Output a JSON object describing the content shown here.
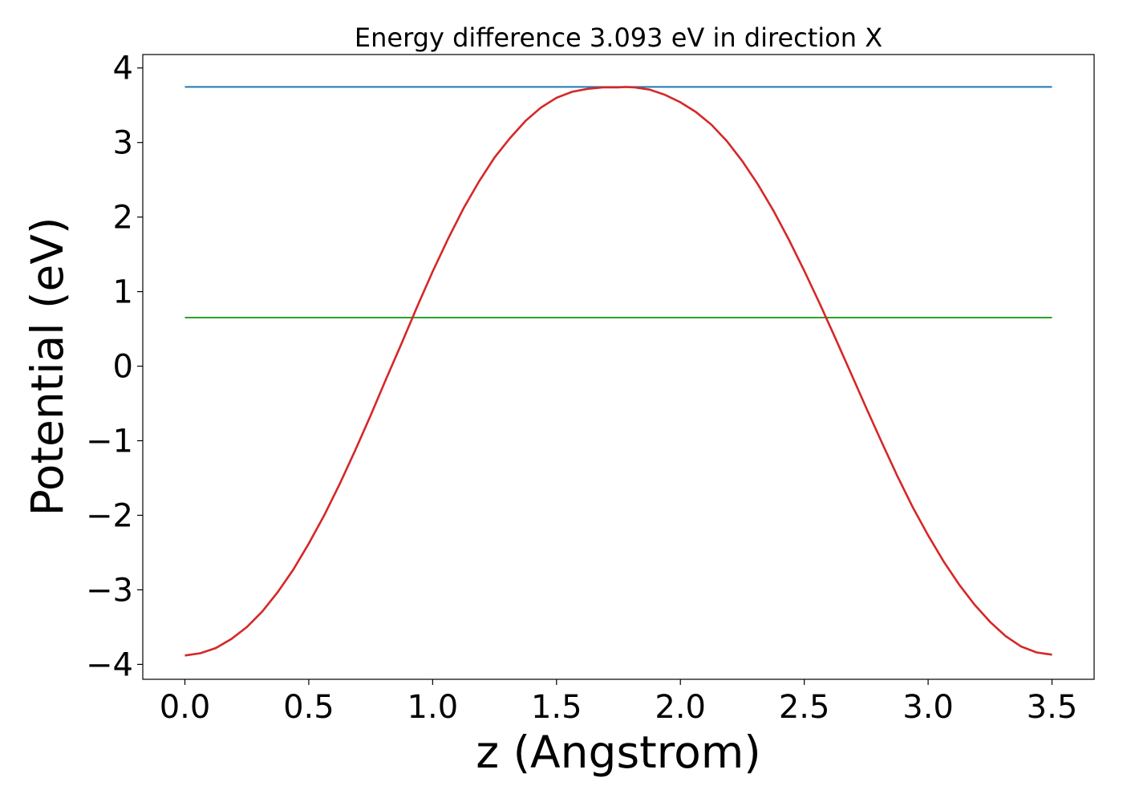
{
  "chart_data": {
    "type": "line",
    "title": "Energy difference 3.093 eV in direction X",
    "xlabel": "z (Angstrom)",
    "ylabel": "Potential (eV)",
    "xlim": [
      -0.17,
      3.67
    ],
    "ylim": [
      -4.2,
      4.18
    ],
    "xticks": [
      0.0,
      0.5,
      1.0,
      1.5,
      2.0,
      2.5,
      3.0,
      3.5
    ],
    "xtick_labels": [
      "0.0",
      "0.5",
      "1.0",
      "1.5",
      "2.0",
      "2.5",
      "3.0",
      "3.5"
    ],
    "yticks": [
      -4,
      -3,
      -2,
      -1,
      0,
      1,
      2,
      3,
      4
    ],
    "ytick_labels": [
      "−4",
      "−3",
      "−2",
      "−1",
      "0",
      "1",
      "2",
      "3",
      "4"
    ],
    "grid": false,
    "colors": {
      "potential": "#d62728",
      "max": "#1f77b4",
      "mid": "#2ca02c"
    },
    "series": [
      {
        "x": [
          0.0,
          0.0625,
          0.125,
          0.1875,
          0.25,
          0.3125,
          0.375,
          0.4375,
          0.5,
          0.5625,
          0.625,
          0.6875,
          0.75,
          0.8125,
          0.875,
          0.9375,
          1.0,
          1.0625,
          1.125,
          1.1875,
          1.25,
          1.3125,
          1.375,
          1.4375,
          1.5,
          1.5625,
          1.625,
          1.6875,
          1.75,
          1.78,
          1.8125,
          1.875,
          1.9375,
          2.0,
          2.0625,
          2.125,
          2.1875,
          2.25,
          2.3125,
          2.375,
          2.4375,
          2.5,
          2.5625,
          2.625,
          2.6875,
          2.75,
          2.8125,
          2.875,
          2.9375,
          3.0,
          3.0625,
          3.125,
          3.1875,
          3.25,
          3.3125,
          3.375,
          3.4375,
          3.5
        ],
        "y": [
          -3.88,
          -3.85,
          -3.78,
          -3.66,
          -3.5,
          -3.29,
          -3.03,
          -2.73,
          -2.38,
          -2.0,
          -1.58,
          -1.13,
          -0.66,
          -0.17,
          0.31,
          0.8,
          1.27,
          1.71,
          2.12,
          2.48,
          2.8,
          3.06,
          3.29,
          3.47,
          3.6,
          3.68,
          3.72,
          3.74,
          3.74,
          3.745,
          3.74,
          3.71,
          3.64,
          3.54,
          3.41,
          3.24,
          3.02,
          2.75,
          2.44,
          2.09,
          1.7,
          1.28,
          0.84,
          0.38,
          -0.09,
          -0.56,
          -1.02,
          -1.47,
          -1.89,
          -2.27,
          -2.62,
          -2.93,
          -3.2,
          -3.43,
          -3.62,
          -3.76,
          -3.84,
          -3.87
        ]
      },
      {
        "x": [
          0.0,
          3.5
        ],
        "y": [
          3.745,
          3.745
        ]
      },
      {
        "x": [
          0.0,
          3.5
        ],
        "y": [
          0.652,
          0.652
        ]
      }
    ]
  }
}
